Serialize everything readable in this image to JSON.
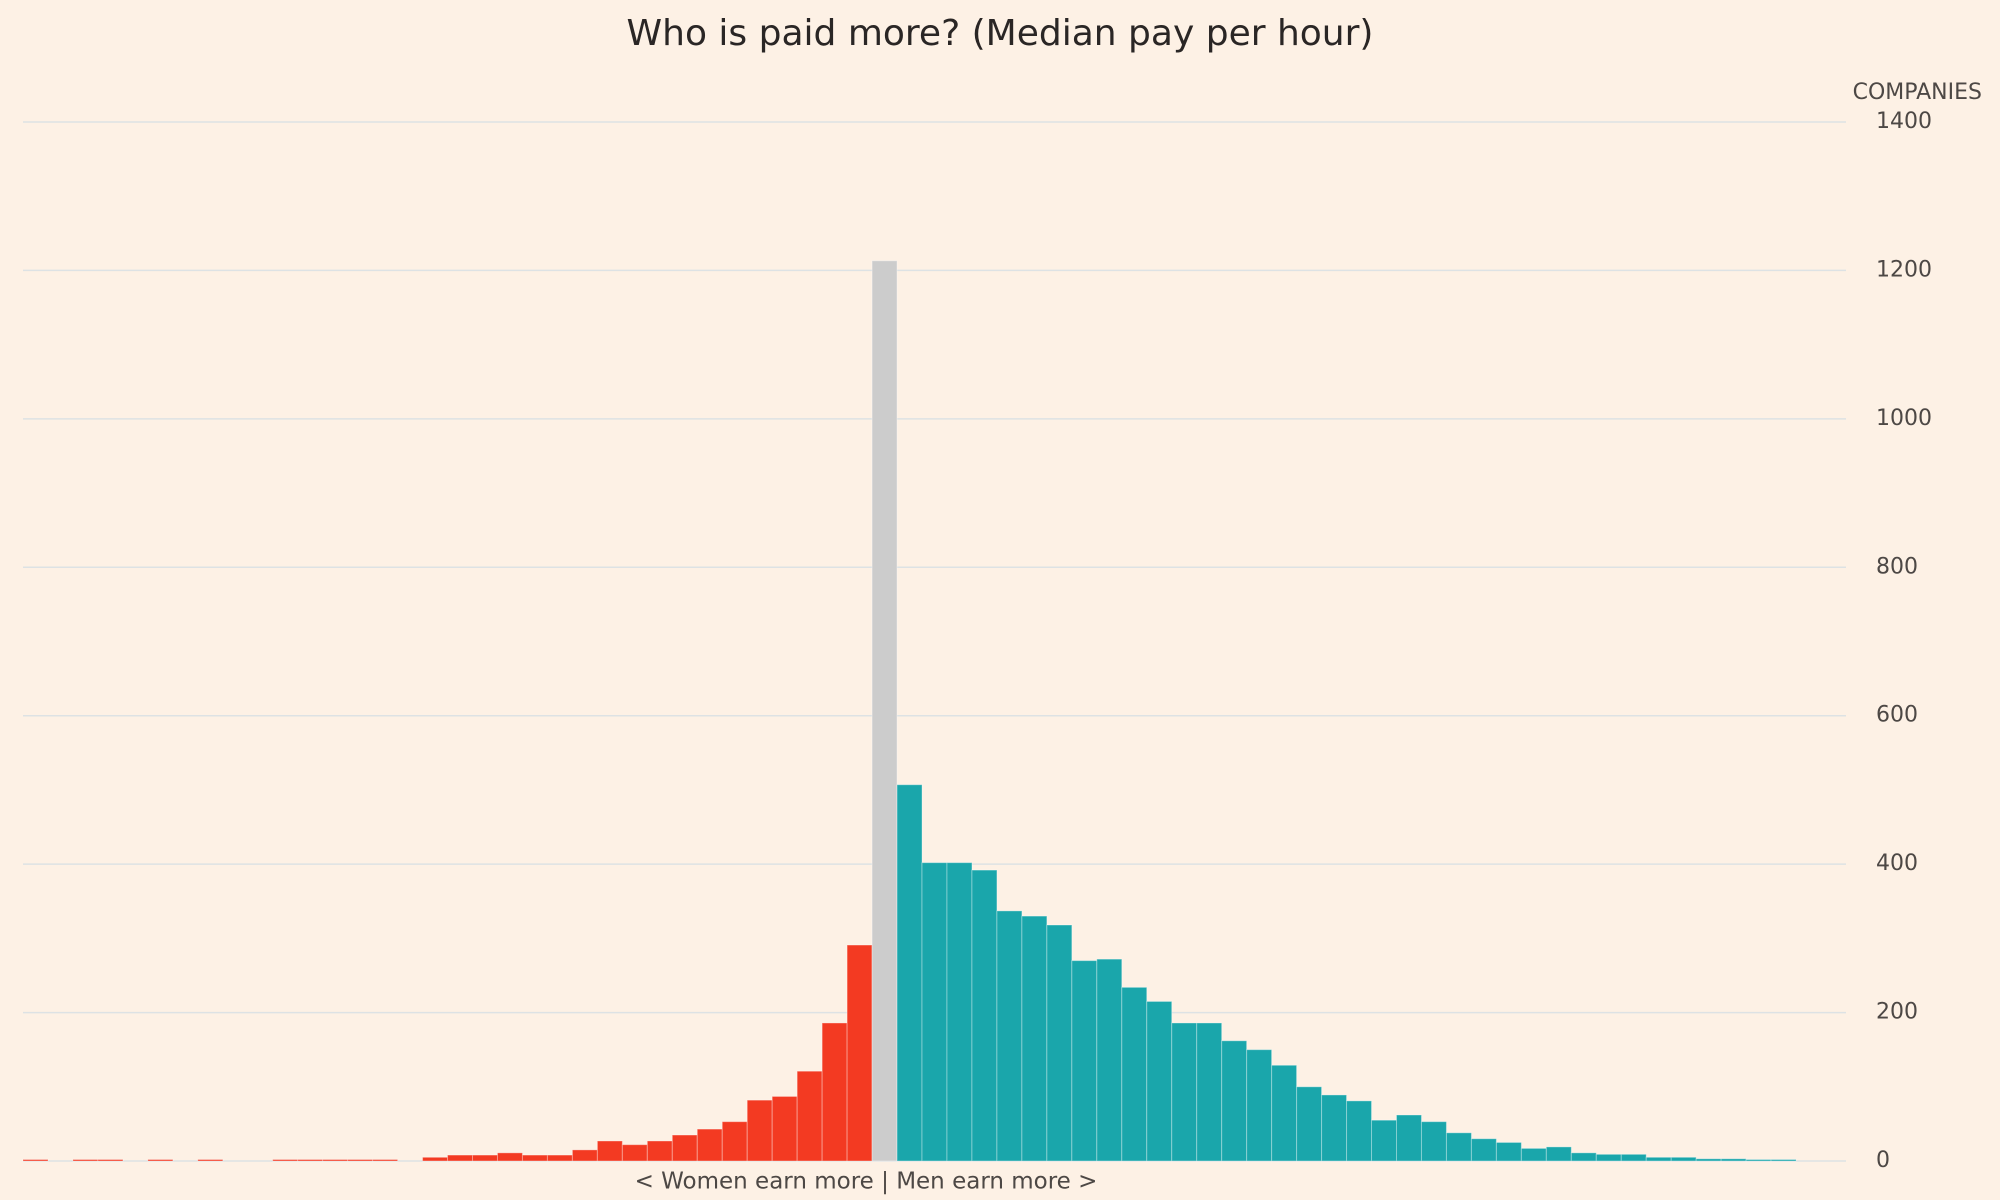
{
  "chart_data": {
    "type": "bar",
    "title": "Who is paid more? (Median pay per hour)",
    "y_axis_label": "COMPANIES",
    "annotation": "< Women earn more | Men earn more >",
    "values": [
      2,
      0,
      2,
      2,
      0,
      2,
      0,
      2,
      0,
      0,
      2,
      2,
      2,
      2,
      2,
      0,
      5,
      8,
      8,
      11,
      8,
      8,
      15,
      27,
      22,
      27,
      35,
      43,
      53,
      82,
      87,
      121,
      186,
      291,
      1213,
      507,
      402,
      402,
      392,
      337,
      330,
      318,
      270,
      272,
      234,
      215,
      186,
      186,
      162,
      150,
      129,
      100,
      89,
      81,
      55,
      62,
      53,
      38,
      30,
      25,
      17,
      19,
      11,
      9,
      9,
      5,
      5,
      3,
      3,
      2,
      2,
      0,
      0
    ],
    "colors": [
      "#f33a22",
      "#f33a22",
      "#f33a22",
      "#f33a22",
      "#f33a22",
      "#f33a22",
      "#f33a22",
      "#f33a22",
      "#f33a22",
      "#f33a22",
      "#f33a22",
      "#f33a22",
      "#f33a22",
      "#f33a22",
      "#f33a22",
      "#f33a22",
      "#f33a22",
      "#f33a22",
      "#f33a22",
      "#f33a22",
      "#f33a22",
      "#f33a22",
      "#f33a22",
      "#f33a22",
      "#f33a22",
      "#f33a22",
      "#f33a22",
      "#f33a22",
      "#f33a22",
      "#f33a22",
      "#f33a22",
      "#f33a22",
      "#f33a22",
      "#f33a22",
      "#cccccc",
      "#1aa6ab",
      "#1aa6ab",
      "#1aa6ab",
      "#1aa6ab",
      "#1aa6ab",
      "#1aa6ab",
      "#1aa6ab",
      "#1aa6ab",
      "#1aa6ab",
      "#1aa6ab",
      "#1aa6ab",
      "#1aa6ab",
      "#1aa6ab",
      "#1aa6ab",
      "#1aa6ab",
      "#1aa6ab",
      "#1aa6ab",
      "#1aa6ab",
      "#1aa6ab",
      "#1aa6ab",
      "#1aa6ab",
      "#1aa6ab",
      "#1aa6ab",
      "#1aa6ab",
      "#1aa6ab",
      "#1aa6ab",
      "#1aa6ab",
      "#1aa6ab",
      "#1aa6ab",
      "#1aa6ab",
      "#1aa6ab",
      "#1aa6ab",
      "#1aa6ab",
      "#1aa6ab",
      "#1aa6ab",
      "#1aa6ab",
      "#1aa6ab",
      "#1aa6ab"
    ],
    "ylim": [
      0,
      1400
    ],
    "yticks": [
      0,
      200,
      400,
      600,
      800,
      1000,
      1200,
      1400
    ],
    "grid": true,
    "y_axis_side": "right"
  }
}
